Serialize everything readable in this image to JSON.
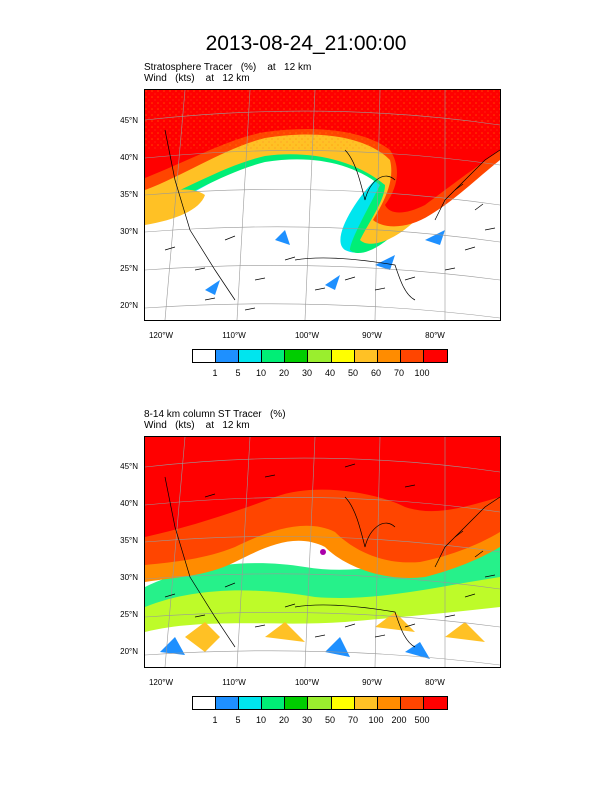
{
  "title": "2013-08-24_21:00:00",
  "panels": [
    {
      "line1": "Stratosphere Tracer   (%)    at   12 km",
      "line2": "Wind   (kts)    at   12 km",
      "colorbar_labels": [
        "1",
        "5",
        "10",
        "20",
        "30",
        "40",
        "50",
        "60",
        "70",
        "100"
      ]
    },
    {
      "line1": "8-14 km column ST Tracer   (%)",
      "line2": "Wind   (kts)    at   12 km",
      "colorbar_labels": [
        "1",
        "5",
        "10",
        "20",
        "30",
        "50",
        "70",
        "100",
        "200",
        "500"
      ]
    }
  ],
  "lat_labels": [
    "45°N",
    "40°N",
    "35°N",
    "30°N",
    "25°N",
    "20°N"
  ],
  "lon_labels": [
    "120°W",
    "110°W",
    "100°W",
    "90°W",
    "80°W"
  ],
  "colors": [
    "#ffffff",
    "#1e90ff",
    "#00e5ee",
    "#00ee76",
    "#00cd00",
    "#9aee2e",
    "#ffff00",
    "#ffc125",
    "#ff8c00",
    "#ff4500",
    "#ff0000"
  ]
}
